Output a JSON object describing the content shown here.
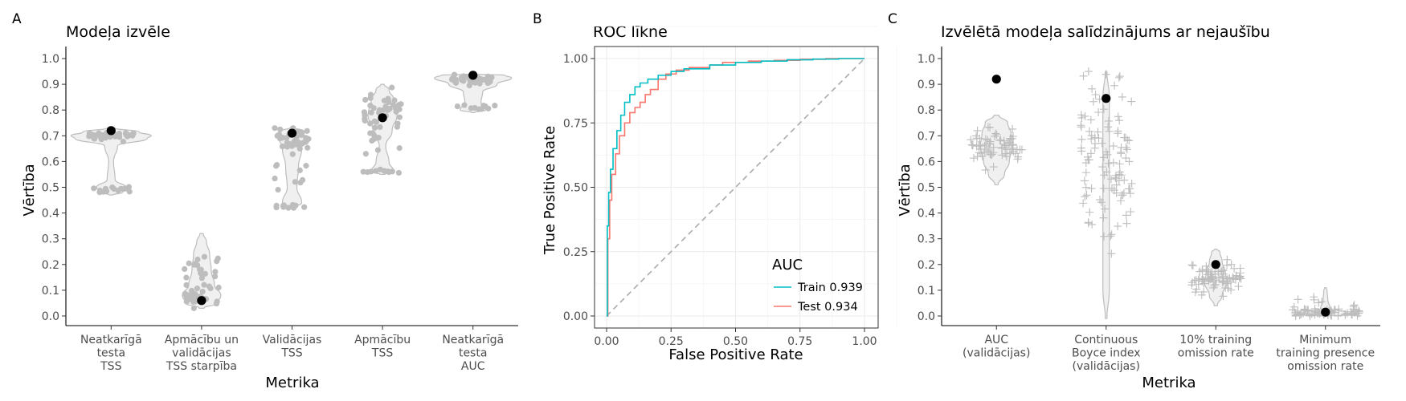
{
  "chart_data": [
    {
      "panel": "A",
      "type": "violin",
      "title": "Modeļa izvēle",
      "xlabel": "Metrika",
      "ylabel": "Vērtība",
      "ylim": [
        0,
        1
      ],
      "yticks": [
        "0.0",
        "0.1",
        "0.2",
        "0.3",
        "0.4",
        "0.5",
        "0.6",
        "0.7",
        "0.8",
        "0.9",
        "1.0"
      ],
      "categories": [
        [
          "Neatkarīgā",
          "testa",
          "TSS"
        ],
        [
          "Apmācību un",
          "validācijas",
          "TSS starpība"
        ],
        [
          "Validācijas",
          "TSS"
        ],
        [
          "Apmācību",
          "TSS"
        ],
        [
          "Neatkarīgā",
          "testa",
          "AUC"
        ]
      ],
      "selected_values": [
        0.72,
        0.06,
        0.71,
        0.77,
        0.935
      ],
      "distribution_ranges": [
        [
          0.47,
          0.72
        ],
        [
          0.03,
          0.32
        ],
        [
          0.42,
          0.73
        ],
        [
          0.55,
          0.9
        ],
        [
          0.79,
          0.94
        ]
      ]
    },
    {
      "panel": "B",
      "type": "line",
      "title": "ROC līkne",
      "xlabel": "False Positive Rate",
      "ylabel": "True Positive Rate",
      "xlim": [
        0,
        1
      ],
      "ylim": [
        0,
        1
      ],
      "xticks": [
        "0.00",
        "0.25",
        "0.50",
        "0.75",
        "1.00"
      ],
      "yticks": [
        "0.00",
        "0.25",
        "0.50",
        "0.75",
        "1.00"
      ],
      "legend_title": "AUC",
      "legend_position": "bottom-right",
      "series": [
        {
          "name": "Train 0.939",
          "color": "#00bfc4",
          "x": [
            0,
            0.003,
            0.008,
            0.015,
            0.025,
            0.04,
            0.055,
            0.07,
            0.09,
            0.11,
            0.13,
            0.16,
            0.2,
            0.25,
            0.3,
            0.4,
            0.5,
            0.6,
            0.7,
            0.8,
            0.9,
            1.0
          ],
          "y": [
            0,
            0.35,
            0.48,
            0.57,
            0.65,
            0.72,
            0.78,
            0.83,
            0.86,
            0.89,
            0.905,
            0.92,
            0.935,
            0.95,
            0.96,
            0.975,
            0.985,
            0.99,
            0.995,
            0.998,
            1.0,
            1.0
          ]
        },
        {
          "name": "Test 0.934",
          "color": "#f8766d",
          "x": [
            0,
            0.005,
            0.012,
            0.02,
            0.035,
            0.05,
            0.07,
            0.09,
            0.11,
            0.13,
            0.15,
            0.17,
            0.2,
            0.23,
            0.27,
            0.32,
            0.4,
            0.45,
            0.55,
            0.65,
            0.75,
            0.85,
            1.0
          ],
          "y": [
            0,
            0.3,
            0.45,
            0.55,
            0.63,
            0.7,
            0.75,
            0.79,
            0.81,
            0.83,
            0.86,
            0.88,
            0.92,
            0.94,
            0.955,
            0.965,
            0.975,
            0.985,
            0.99,
            0.993,
            0.997,
            1.0,
            1.0
          ]
        }
      ],
      "reference_line": [
        [
          0,
          0
        ],
        [
          1,
          1
        ]
      ]
    },
    {
      "panel": "C",
      "type": "violin",
      "title": "Izvēlētā modeļa salīdzinājums ar nejaušību",
      "xlabel": "Metrika",
      "ylabel": "Vērtība",
      "ylim": [
        0,
        1
      ],
      "yticks": [
        "0.0",
        "0.1",
        "0.2",
        "0.3",
        "0.4",
        "0.5",
        "0.6",
        "0.7",
        "0.8",
        "0.9",
        "1.0"
      ],
      "categories": [
        [
          "AUC",
          "(validācijas)"
        ],
        [
          "Continuous",
          "Boyce index",
          "(validācijas)"
        ],
        [
          "10% training",
          "omission rate"
        ],
        [
          "Minimum",
          "training presence",
          "omission rate"
        ]
      ],
      "selected_values": [
        0.92,
        0.845,
        0.2,
        0.015
      ],
      "distribution_ranges": [
        [
          0.51,
          0.78
        ],
        [
          -0.01,
          0.95
        ],
        [
          0.04,
          0.26
        ],
        [
          0.0,
          0.11
        ]
      ]
    }
  ]
}
